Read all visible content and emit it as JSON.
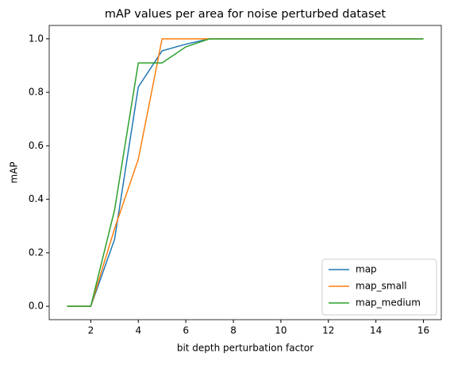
{
  "chart_data": {
    "type": "line",
    "title": "mAP values per area for noise perturbed dataset",
    "x_label": "bit depth perturbation factor",
    "y_label": "mAP",
    "x": [
      1,
      2,
      3,
      4,
      5,
      6,
      7,
      8,
      9,
      10,
      11,
      12,
      13,
      14,
      15,
      16
    ],
    "series": [
      {
        "name": "map",
        "color": "#1f77b4",
        "values": [
          0,
          0,
          0.25,
          0.82,
          0.955,
          0.98,
          1,
          1,
          1,
          1,
          1,
          1,
          1,
          1,
          1,
          1
        ]
      },
      {
        "name": "map_small",
        "color": "#ff7f0e",
        "values": [
          0,
          0,
          0.29,
          0.55,
          1,
          1,
          1,
          1,
          1,
          1,
          1,
          1,
          1,
          1,
          1,
          1
        ]
      },
      {
        "name": "map_medium",
        "color": "#2ca02c",
        "values": [
          0,
          0,
          0.36,
          0.91,
          0.91,
          0.97,
          1,
          1,
          1,
          1,
          1,
          1,
          1,
          1,
          1,
          1
        ]
      }
    ],
    "xlim": [
      0.25,
      16.75
    ],
    "ylim": [
      -0.05,
      1.05
    ],
    "xticks": [
      2,
      4,
      6,
      8,
      10,
      12,
      14,
      16
    ],
    "yticks": [
      {
        "value": 0,
        "label": "0.0"
      },
      0.2,
      0.4,
      0.6,
      0.8,
      {
        "value": 1,
        "label": "1.0"
      }
    ],
    "legend": "lower right"
  }
}
